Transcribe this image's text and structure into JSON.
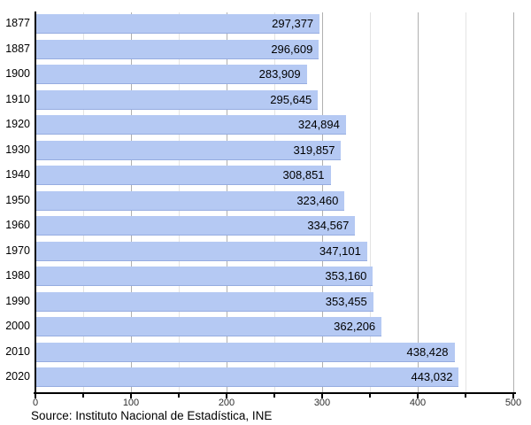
{
  "chart_data": {
    "type": "bar",
    "orientation": "horizontal",
    "title": "",
    "xlabel": "",
    "ylabel": "",
    "categories": [
      "1877",
      "1887",
      "1900",
      "1910",
      "1920",
      "1930",
      "1940",
      "1950",
      "1960",
      "1970",
      "1980",
      "1990",
      "2000",
      "2010",
      "2020"
    ],
    "values": [
      297377,
      296609,
      283909,
      295645,
      324894,
      319857,
      308851,
      323460,
      334567,
      347101,
      353160,
      353455,
      362206,
      438428,
      443032
    ],
    "value_labels": [
      "297,377",
      "296,609",
      "283,909",
      "295,645",
      "324,894",
      "319,857",
      "308,851",
      "323,460",
      "334,567",
      "347,101",
      "353,160",
      "353,455",
      "362,206",
      "438,428",
      "443,032"
    ],
    "xlim_thousands": [
      0,
      500
    ],
    "x_tick_labels": [
      "0",
      "100",
      "200",
      "300",
      "400",
      "500"
    ],
    "x_major_tick_step_thousands": 100,
    "x_minor_tick_step_thousands": 50,
    "grid": "vertical-on",
    "legend": "none",
    "source_note": "Source: Instituto Nacional de Estadística, INE"
  },
  "colors": {
    "background": "#ffffff",
    "bar_fill": "#b5c9f3",
    "major_grid": "#b0b0b0",
    "minor_grid": "#e3e3e3",
    "axis": "#000000",
    "label_text": "#000000",
    "tick_text": "#2e2e2e"
  }
}
